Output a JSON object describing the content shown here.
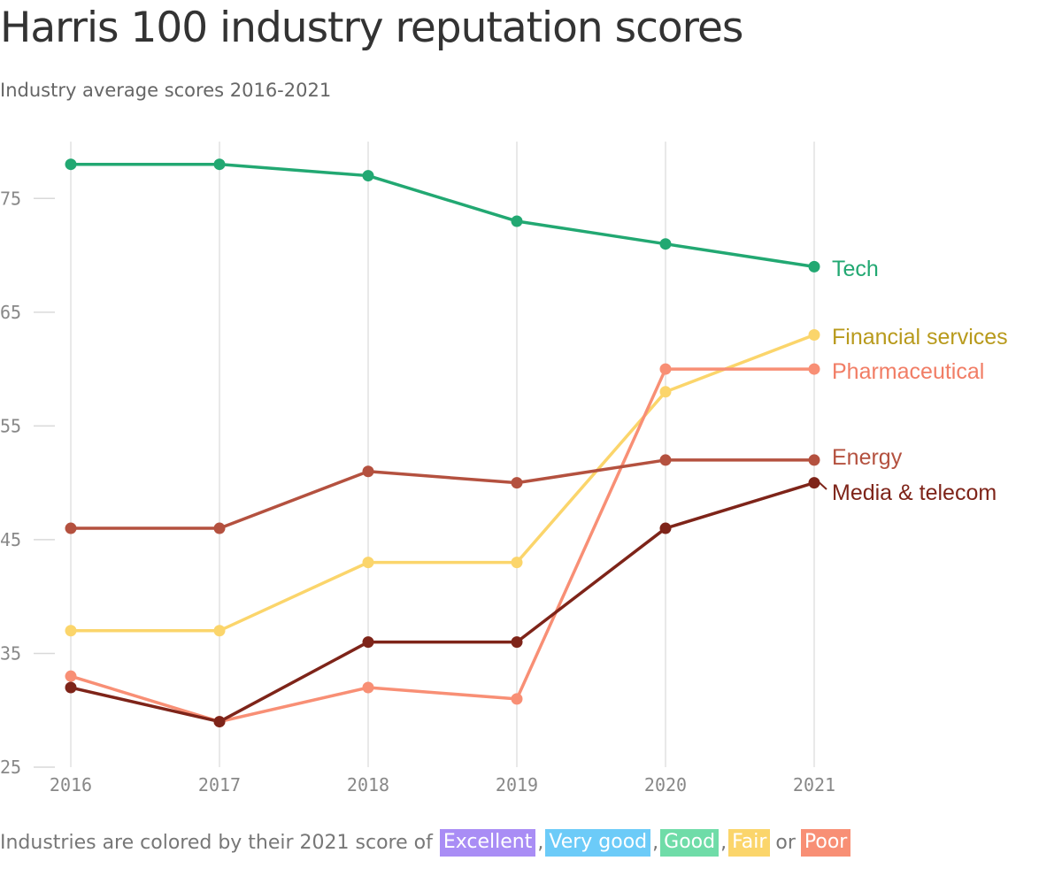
{
  "title": "Harris 100 industry reputation scores",
  "subtitle": "Industry average scores 2016-2021",
  "footer": {
    "prefix": "Industries are colored by their 2021 score of",
    "badges": [
      {
        "label": "Excellent",
        "color": "#a98df5"
      },
      {
        "label": "Very good",
        "color": "#6ccbf8"
      },
      {
        "label": "Good",
        "color": "#6fdca8"
      },
      {
        "label": "Fair",
        "color": "#fbd56b"
      },
      {
        "label": "Poor",
        "color": "#f88f75"
      }
    ],
    "sep_comma": ",",
    "sep_or": "or"
  },
  "chart_data": {
    "type": "line",
    "x": [
      "2016",
      "2017",
      "2018",
      "2019",
      "2020",
      "2021"
    ],
    "ylim": [
      25,
      80
    ],
    "yticks": [
      25,
      35,
      45,
      55,
      65,
      75
    ],
    "grid": "vertical",
    "legend": "direct-labels-right",
    "series": [
      {
        "name": "Tech",
        "color": "#22a872",
        "label_color": "#22a872",
        "values": [
          78,
          78,
          77,
          73,
          71,
          69
        ]
      },
      {
        "name": "Financial services",
        "color": "#fbd56b",
        "label_color": "#b89a1c",
        "values": [
          37,
          37,
          43,
          43,
          58,
          63
        ]
      },
      {
        "name": "Pharmaceutical",
        "color": "#f88f75",
        "label_color": "#f17d65",
        "values": [
          33,
          29,
          32,
          31,
          60,
          60
        ]
      },
      {
        "name": "Energy",
        "color": "#b4513f",
        "label_color": "#b4513f",
        "values": [
          46,
          46,
          51,
          50,
          52,
          52
        ]
      },
      {
        "name": "Media & telecom",
        "color": "#7e2419",
        "label_color": "#7e2419",
        "values": [
          32,
          29,
          36,
          36,
          46,
          50
        ]
      }
    ]
  }
}
